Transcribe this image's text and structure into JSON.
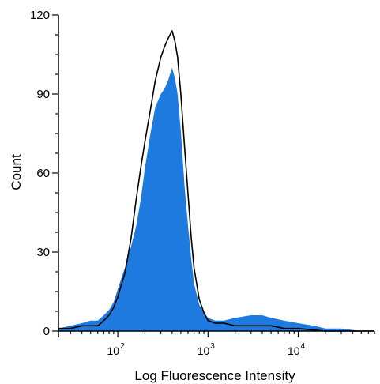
{
  "chart_data": {
    "type": "area",
    "title": "",
    "xlabel": "Log Fluorescence Intensity",
    "ylabel": "Count",
    "x_scale": "log",
    "xlim": [
      22,
      70000
    ],
    "ylim": [
      0,
      120
    ],
    "grid": false,
    "legend": "none",
    "y_ticks": [
      {
        "value": 0,
        "label": "0"
      },
      {
        "value": 30,
        "label": "30"
      },
      {
        "value": 60,
        "label": "60"
      },
      {
        "value": 90,
        "label": "90"
      },
      {
        "value": 120,
        "label": "120"
      }
    ],
    "x_ticks": [
      {
        "value": 100,
        "base": "10",
        "exp": "2"
      },
      {
        "value": 1000,
        "base": "10",
        "exp": "3"
      },
      {
        "value": 10000,
        "base": "10",
        "exp": "4"
      }
    ],
    "series": [
      {
        "style": "filled",
        "color": "#1f7ae0",
        "points": [
          [
            22,
            1
          ],
          [
            30,
            2
          ],
          [
            40,
            3
          ],
          [
            50,
            4
          ],
          [
            60,
            4
          ],
          [
            70,
            6
          ],
          [
            80,
            8
          ],
          [
            90,
            11
          ],
          [
            100,
            16
          ],
          [
            120,
            24
          ],
          [
            140,
            32
          ],
          [
            160,
            40
          ],
          [
            180,
            50
          ],
          [
            200,
            62
          ],
          [
            230,
            75
          ],
          [
            260,
            85
          ],
          [
            300,
            90
          ],
          [
            330,
            92
          ],
          [
            360,
            95
          ],
          [
            400,
            100
          ],
          [
            430,
            96
          ],
          [
            460,
            90
          ],
          [
            500,
            76
          ],
          [
            550,
            55
          ],
          [
            600,
            40
          ],
          [
            650,
            28
          ],
          [
            700,
            18
          ],
          [
            800,
            10
          ],
          [
            900,
            7
          ],
          [
            1000,
            5
          ],
          [
            1200,
            4
          ],
          [
            1500,
            4
          ],
          [
            2000,
            5
          ],
          [
            3000,
            6
          ],
          [
            4000,
            6
          ],
          [
            5000,
            5
          ],
          [
            7000,
            4
          ],
          [
            10000,
            3
          ],
          [
            15000,
            2
          ],
          [
            20000,
            1
          ],
          [
            30000,
            1
          ],
          [
            50000,
            0
          ],
          [
            70000,
            0
          ]
        ]
      },
      {
        "style": "line",
        "color": "#000000",
        "points": [
          [
            22,
            1
          ],
          [
            30,
            1
          ],
          [
            40,
            2
          ],
          [
            50,
            2
          ],
          [
            60,
            2
          ],
          [
            70,
            4
          ],
          [
            80,
            6
          ],
          [
            90,
            9
          ],
          [
            100,
            13
          ],
          [
            120,
            22
          ],
          [
            140,
            35
          ],
          [
            160,
            50
          ],
          [
            180,
            62
          ],
          [
            200,
            72
          ],
          [
            230,
            84
          ],
          [
            260,
            95
          ],
          [
            300,
            104
          ],
          [
            330,
            108
          ],
          [
            360,
            111
          ],
          [
            400,
            114
          ],
          [
            430,
            110
          ],
          [
            460,
            104
          ],
          [
            500,
            90
          ],
          [
            550,
            70
          ],
          [
            600,
            52
          ],
          [
            650,
            36
          ],
          [
            700,
            24
          ],
          [
            800,
            12
          ],
          [
            900,
            7
          ],
          [
            1000,
            4
          ],
          [
            1200,
            3
          ],
          [
            1500,
            3
          ],
          [
            2000,
            2
          ],
          [
            3000,
            2
          ],
          [
            4000,
            2
          ],
          [
            5000,
            2
          ],
          [
            7000,
            1
          ],
          [
            10000,
            1
          ],
          [
            20000,
            0
          ],
          [
            30000,
            0
          ],
          [
            70000,
            0
          ]
        ]
      }
    ]
  }
}
